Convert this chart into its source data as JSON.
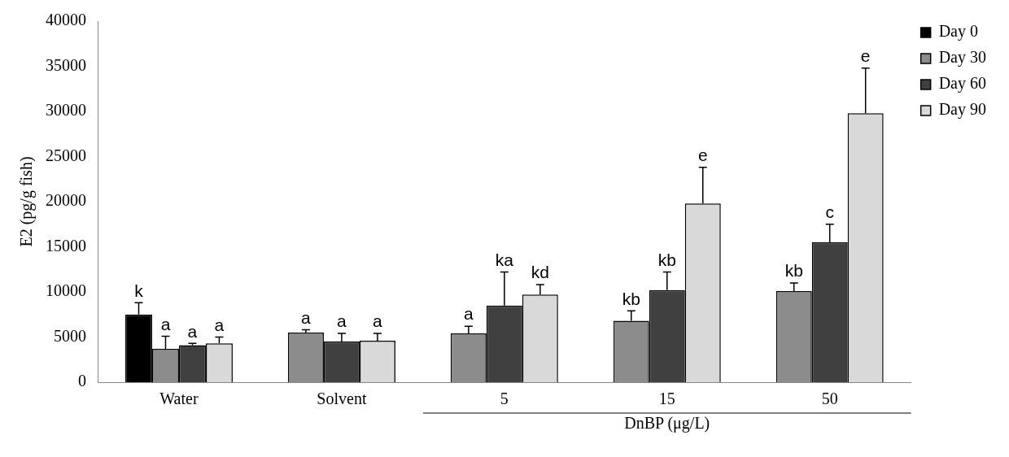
{
  "chart_data": {
    "type": "bar",
    "categories": [
      "Water",
      "Solvent",
      "5",
      "15",
      "50"
    ],
    "xlabel": "DnBP (μg/L)",
    "ylabel": "E2 (pg/g fish)",
    "ylim": [
      0,
      40000
    ],
    "yticks": [
      0,
      5000,
      10000,
      15000,
      20000,
      25000,
      30000,
      35000,
      40000
    ],
    "series": [
      {
        "name": "Day 0",
        "color": "#000000",
        "values": [
          7500,
          null,
          null,
          null,
          null
        ],
        "errors": [
          1300,
          null,
          null,
          null,
          null
        ],
        "value_labels": [
          "k",
          null,
          null,
          null,
          null
        ]
      },
      {
        "name": "Day 30",
        "color": "#8c8c8c",
        "values": [
          3700,
          5500,
          5400,
          6800,
          10100
        ],
        "errors": [
          1400,
          300,
          800,
          1100,
          900
        ],
        "value_labels": [
          "a",
          "a",
          "a",
          "kb",
          "kb"
        ]
      },
      {
        "name": "Day 60",
        "color": "#404040",
        "values": [
          4100,
          4500,
          8500,
          10200,
          15500
        ],
        "errors": [
          200,
          900,
          3700,
          2000,
          2000
        ],
        "value_labels": [
          "a",
          "a",
          "ka",
          "kb",
          "c"
        ]
      },
      {
        "name": "Day 90",
        "color": "#d9d9d9",
        "values": [
          4300,
          4600,
          9700,
          19800,
          29800
        ],
        "errors": [
          700,
          800,
          1100,
          4000,
          5000
        ],
        "value_labels": [
          "a",
          "a",
          "kd",
          "e",
          "e"
        ]
      }
    ],
    "legend": "top right",
    "grid": false
  }
}
